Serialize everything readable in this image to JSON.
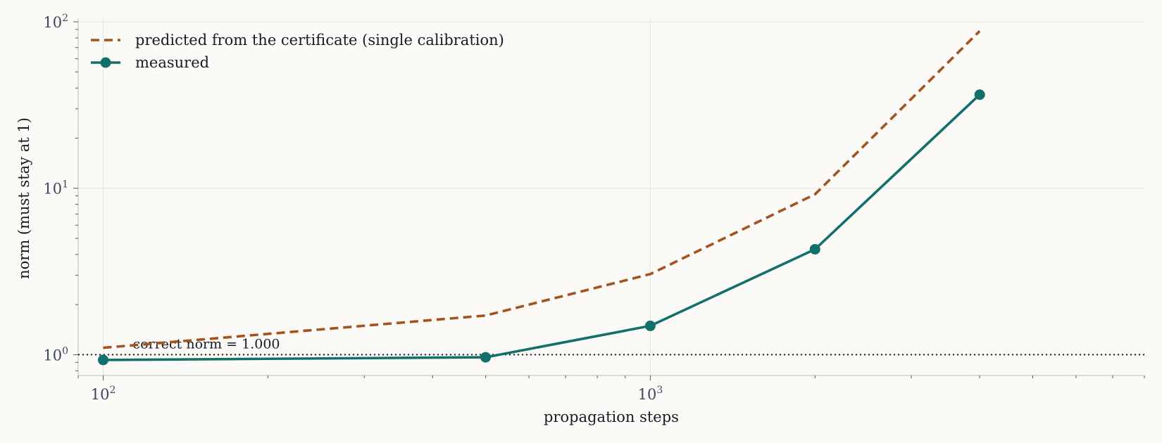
{
  "chart_data": {
    "type": "line",
    "xlabel": "propagation steps",
    "ylabel": "norm (must stay at 1)",
    "x_scale": "log",
    "y_scale": "log",
    "xlim": [
      90,
      8000
    ],
    "ylim": [
      0.75,
      105
    ],
    "x_ticks": [
      {
        "value": 100,
        "base": "10",
        "exp": "2"
      },
      {
        "value": 1000,
        "base": "10",
        "exp": "3"
      }
    ],
    "y_ticks": [
      {
        "value": 1,
        "base": "10",
        "exp": "0"
      },
      {
        "value": 10,
        "base": "10",
        "exp": "1"
      },
      {
        "value": 100,
        "base": "10",
        "exp": "2"
      }
    ],
    "grid": true,
    "legend_position": "top-left",
    "series": [
      {
        "name": "predicted from the certificate (single calibration)",
        "color": "#a4531f",
        "style": "dashed",
        "marker": "none",
        "x": [
          100,
          500,
          1000,
          2000,
          4000
        ],
        "y": [
          1.1,
          1.72,
          3.05,
          9.2,
          88
        ]
      },
      {
        "name": "measured",
        "color": "#12706b",
        "style": "solid",
        "marker": "circle",
        "x": [
          100,
          500,
          1000,
          2000,
          4000
        ],
        "y": [
          0.93,
          0.965,
          1.49,
          4.3,
          36.5
        ]
      }
    ],
    "reference_line": {
      "y": 1.0,
      "style": "dotted",
      "color": "#1a1a26",
      "label": "correct norm = 1.000"
    },
    "colors": {
      "background": "#fbfaf6",
      "grid": "#e6e3dc",
      "axis": "#c9c6c0",
      "tick_text": "#3c4763"
    }
  }
}
